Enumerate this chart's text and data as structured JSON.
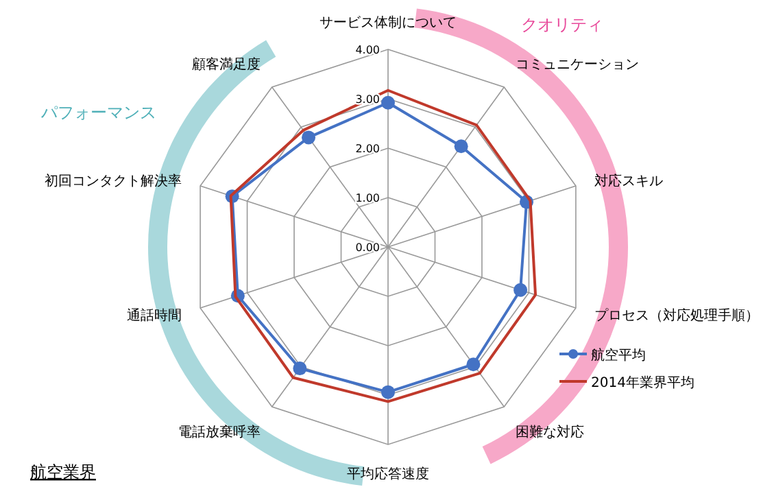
{
  "chart_data": {
    "type": "radar",
    "categories": [
      "サービス体制について",
      "コミュニケーション",
      "対応スキル",
      "プロセス（対応処理手順）",
      "困難な対応",
      "平均応答速度",
      "電話放棄呼率",
      "通話時間",
      "初回コンタクト解決率",
      "顧客満足度"
    ],
    "series": [
      {
        "name": "航空平均",
        "color": "#4472c4",
        "marker": "circle",
        "values": [
          2.92,
          2.52,
          2.95,
          2.82,
          2.94,
          2.94,
          3.04,
          3.2,
          3.32,
          2.74
        ]
      },
      {
        "name": "2014年業界平均",
        "color": "#c0392b",
        "marker": "none",
        "values": [
          3.17,
          3.05,
          3.03,
          3.14,
          3.16,
          3.13,
          3.27,
          3.25,
          3.35,
          2.92
        ]
      }
    ],
    "ylim": [
      0,
      4
    ],
    "yticks": [
      {
        "value": 0,
        "label": "0.00"
      },
      {
        "value": 1,
        "label": "1.00"
      },
      {
        "value": 2,
        "label": "2.00"
      },
      {
        "value": 3,
        "label": "3.00"
      },
      {
        "value": 4,
        "label": "4.00"
      }
    ],
    "grid": true,
    "legend": "bottom right",
    "annotations": [
      "クオリティ",
      "パフォーマンス",
      "航空業界"
    ]
  }
}
